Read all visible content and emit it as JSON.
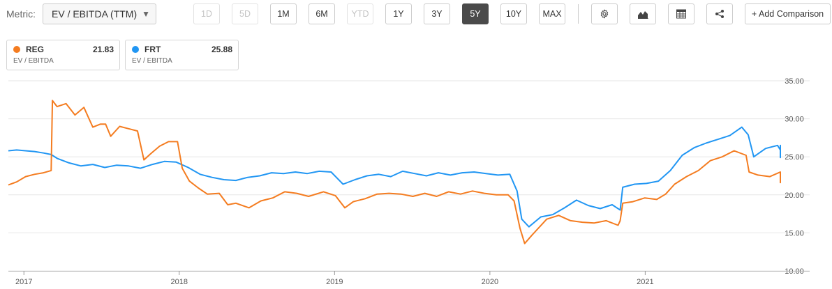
{
  "toolbar": {
    "metric_label": "Metric:",
    "metric_value": "EV / EBITDA (TTM)",
    "ranges": [
      {
        "label": "1D",
        "state": "disabled"
      },
      {
        "label": "5D",
        "state": "disabled"
      },
      {
        "label": "1M",
        "state": "normal"
      },
      {
        "label": "6M",
        "state": "normal"
      },
      {
        "label": "YTD",
        "state": "disabled"
      },
      {
        "label": "1Y",
        "state": "normal"
      },
      {
        "label": "3Y",
        "state": "normal"
      },
      {
        "label": "5Y",
        "state": "active"
      },
      {
        "label": "10Y",
        "state": "normal"
      },
      {
        "label": "MAX",
        "state": "normal"
      }
    ],
    "icons": [
      "gear-icon",
      "area-chart-icon",
      "table-icon",
      "share-icon"
    ],
    "add_comparison": "+ Add Comparison"
  },
  "legend": [
    {
      "ticker": "REG",
      "value": "21.83",
      "metric": "EV / EBITDA",
      "color": "#f47c20"
    },
    {
      "ticker": "FRT",
      "value": "25.88",
      "metric": "EV / EBITDA",
      "color": "#2196f3"
    }
  ],
  "chart_data": {
    "type": "line",
    "title": "",
    "xlabel": "",
    "ylabel": "",
    "ylim": [
      10,
      35
    ],
    "yticks": [
      "10.00",
      "15.00",
      "20.00",
      "25.00",
      "30.00",
      "35.00"
    ],
    "xticks": [
      {
        "label": "2017",
        "year": 2017.0
      },
      {
        "label": "2018",
        "year": 2018.0
      },
      {
        "label": "2019",
        "year": 2019.0
      },
      {
        "label": "2020",
        "year": 2020.0
      },
      {
        "label": "2021",
        "year": 2021.0
      }
    ],
    "xlim": [
      2016.9,
      2021.87
    ],
    "grid": "horizontal",
    "series": [
      {
        "name": "REG",
        "color": "#f47c20",
        "points": [
          [
            "2016-11-23",
            21.3
          ],
          [
            "2016-12-15",
            21.7
          ],
          [
            "2017-01-05",
            22.4
          ],
          [
            "2017-01-26",
            22.7
          ],
          [
            "2017-02-16",
            22.9
          ],
          [
            "2017-03-06",
            23.2
          ],
          [
            "2017-03-09",
            32.4
          ],
          [
            "2017-03-20",
            31.6
          ],
          [
            "2017-04-10",
            32.0
          ],
          [
            "2017-05-01",
            30.5
          ],
          [
            "2017-05-22",
            31.5
          ],
          [
            "2017-06-12",
            28.9
          ],
          [
            "2017-06-30",
            29.3
          ],
          [
            "2017-07-12",
            29.3
          ],
          [
            "2017-07-24",
            27.7
          ],
          [
            "2017-08-14",
            29.0
          ],
          [
            "2017-09-04",
            28.7
          ],
          [
            "2017-09-25",
            28.4
          ],
          [
            "2017-10-10",
            24.6
          ],
          [
            "2017-10-26",
            25.4
          ],
          [
            "2017-11-16",
            26.4
          ],
          [
            "2017-12-07",
            27.0
          ],
          [
            "2017-12-28",
            27.0
          ],
          [
            "2018-01-08",
            23.5
          ],
          [
            "2018-01-25",
            21.8
          ],
          [
            "2018-02-15",
            20.9
          ],
          [
            "2018-03-08",
            20.1
          ],
          [
            "2018-04-05",
            20.2
          ],
          [
            "2018-04-25",
            18.7
          ],
          [
            "2018-05-14",
            18.9
          ],
          [
            "2018-06-14",
            18.3
          ],
          [
            "2018-07-12",
            19.2
          ],
          [
            "2018-08-09",
            19.6
          ],
          [
            "2018-09-06",
            20.4
          ],
          [
            "2018-10-04",
            20.2
          ],
          [
            "2018-11-01",
            19.8
          ],
          [
            "2018-12-06",
            20.4
          ],
          [
            "2019-01-03",
            19.9
          ],
          [
            "2019-01-25",
            18.3
          ],
          [
            "2019-02-14",
            19.1
          ],
          [
            "2019-03-14",
            19.5
          ],
          [
            "2019-04-11",
            20.1
          ],
          [
            "2019-05-09",
            20.2
          ],
          [
            "2019-06-06",
            20.1
          ],
          [
            "2019-07-04",
            19.8
          ],
          [
            "2019-08-01",
            20.2
          ],
          [
            "2019-08-29",
            19.8
          ],
          [
            "2019-09-26",
            20.4
          ],
          [
            "2019-10-24",
            20.1
          ],
          [
            "2019-11-21",
            20.5
          ],
          [
            "2019-12-19",
            20.2
          ],
          [
            "2020-01-16",
            20.0
          ],
          [
            "2020-02-13",
            20.0
          ],
          [
            "2020-02-27",
            19.2
          ],
          [
            "2020-03-12",
            15.6
          ],
          [
            "2020-03-23",
            13.6
          ],
          [
            "2020-04-09",
            14.7
          ],
          [
            "2020-05-14",
            16.8
          ],
          [
            "2020-06-11",
            17.3
          ],
          [
            "2020-07-09",
            16.6
          ],
          [
            "2020-08-06",
            16.4
          ],
          [
            "2020-09-03",
            16.3
          ],
          [
            "2020-10-01",
            16.6
          ],
          [
            "2020-10-29",
            16.0
          ],
          [
            "2020-11-03",
            16.6
          ],
          [
            "2020-11-09",
            18.9
          ],
          [
            "2020-12-03",
            19.1
          ],
          [
            "2020-12-31",
            19.6
          ],
          [
            "2021-01-28",
            19.4
          ],
          [
            "2021-02-18",
            20.1
          ],
          [
            "2021-03-11",
            21.4
          ],
          [
            "2021-04-08",
            22.4
          ],
          [
            "2021-05-06",
            23.2
          ],
          [
            "2021-06-03",
            24.5
          ],
          [
            "2021-07-01",
            25.0
          ],
          [
            "2021-07-29",
            25.8
          ],
          [
            "2021-08-26",
            25.2
          ],
          [
            "2021-09-02",
            23.0
          ],
          [
            "2021-09-23",
            22.6
          ],
          [
            "2021-10-21",
            22.4
          ],
          [
            "2021-11-18",
            23.0
          ],
          [
            "2021-12-09",
            22.9
          ],
          [
            "2022-01-06",
            21.6
          ],
          [
            "2022-01-27",
            21.6
          ],
          [
            "2022-02-10",
            22.9
          ],
          [
            "2022-02-24",
            22.3
          ],
          [
            "2022-03-03",
            21.8
          ]
        ]
      },
      {
        "name": "FRT",
        "color": "#2196f3",
        "points": [
          [
            "2016-11-23",
            25.8
          ],
          [
            "2016-12-15",
            25.9
          ],
          [
            "2017-01-05",
            25.8
          ],
          [
            "2017-01-26",
            25.7
          ],
          [
            "2017-02-16",
            25.5
          ],
          [
            "2017-03-06",
            25.3
          ],
          [
            "2017-03-20",
            24.8
          ],
          [
            "2017-04-17",
            24.2
          ],
          [
            "2017-05-15",
            23.8
          ],
          [
            "2017-06-12",
            24.0
          ],
          [
            "2017-07-10",
            23.6
          ],
          [
            "2017-08-07",
            23.9
          ],
          [
            "2017-09-04",
            23.8
          ],
          [
            "2017-10-02",
            23.5
          ],
          [
            "2017-10-30",
            24.0
          ],
          [
            "2017-11-27",
            24.4
          ],
          [
            "2017-12-25",
            24.3
          ],
          [
            "2018-01-22",
            23.6
          ],
          [
            "2018-02-19",
            22.7
          ],
          [
            "2018-03-19",
            22.3
          ],
          [
            "2018-04-16",
            22.0
          ],
          [
            "2018-05-14",
            21.9
          ],
          [
            "2018-06-11",
            22.3
          ],
          [
            "2018-07-09",
            22.5
          ],
          [
            "2018-08-06",
            22.9
          ],
          [
            "2018-09-03",
            22.8
          ],
          [
            "2018-10-01",
            23.0
          ],
          [
            "2018-10-29",
            22.8
          ],
          [
            "2018-11-26",
            23.1
          ],
          [
            "2018-12-24",
            23.0
          ],
          [
            "2019-01-21",
            21.4
          ],
          [
            "2019-02-18",
            22.0
          ],
          [
            "2019-03-18",
            22.5
          ],
          [
            "2019-04-15",
            22.7
          ],
          [
            "2019-05-13",
            22.4
          ],
          [
            "2019-06-10",
            23.1
          ],
          [
            "2019-07-08",
            22.8
          ],
          [
            "2019-08-05",
            22.5
          ],
          [
            "2019-09-02",
            22.9
          ],
          [
            "2019-09-30",
            22.6
          ],
          [
            "2019-10-28",
            22.9
          ],
          [
            "2019-11-25",
            23.0
          ],
          [
            "2019-12-23",
            22.8
          ],
          [
            "2020-01-20",
            22.6
          ],
          [
            "2020-02-17",
            22.7
          ],
          [
            "2020-03-05",
            20.5
          ],
          [
            "2020-03-16",
            16.8
          ],
          [
            "2020-04-02",
            15.8
          ],
          [
            "2020-04-30",
            17.1
          ],
          [
            "2020-05-28",
            17.4
          ],
          [
            "2020-06-25",
            18.3
          ],
          [
            "2020-07-23",
            19.3
          ],
          [
            "2020-08-20",
            18.6
          ],
          [
            "2020-09-17",
            18.2
          ],
          [
            "2020-10-15",
            18.7
          ],
          [
            "2020-11-03",
            18.0
          ],
          [
            "2020-11-09",
            21.0
          ],
          [
            "2020-12-07",
            21.4
          ],
          [
            "2021-01-04",
            21.5
          ],
          [
            "2021-02-01",
            21.8
          ],
          [
            "2021-03-01",
            23.2
          ],
          [
            "2021-03-29",
            25.2
          ],
          [
            "2021-04-26",
            26.2
          ],
          [
            "2021-05-24",
            26.8
          ],
          [
            "2021-06-21",
            27.3
          ],
          [
            "2021-07-19",
            27.8
          ],
          [
            "2021-08-16",
            28.9
          ],
          [
            "2021-08-31",
            27.9
          ],
          [
            "2021-09-13",
            25.0
          ],
          [
            "2021-10-11",
            26.1
          ],
          [
            "2021-11-08",
            26.5
          ],
          [
            "2021-12-06",
            25.9
          ],
          [
            "2022-01-03",
            26.1
          ],
          [
            "2022-01-24",
            24.9
          ],
          [
            "2022-02-14",
            25.3
          ],
          [
            "2022-02-24",
            26.5
          ],
          [
            "2022-03-03",
            25.9
          ]
        ]
      }
    ]
  }
}
